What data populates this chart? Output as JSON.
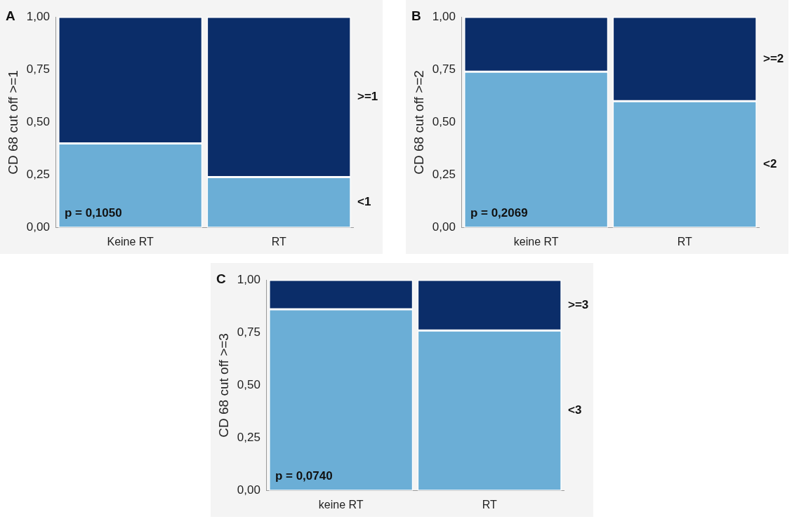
{
  "chart_data": [
    {
      "type": "bar",
      "title": "A",
      "ylabel": "CD 68 cut off >=1",
      "categories": [
        "Keine RT",
        "RT"
      ],
      "stacked": true,
      "legend": false,
      "grid": false,
      "series": [
        {
          "name": "<1",
          "color": "#6baed6",
          "values": [
            0.4,
            0.24
          ]
        },
        {
          "name": ">=1",
          "color": "#0b2d69",
          "values": [
            0.6,
            0.76
          ]
        }
      ],
      "ylim": [
        0,
        1
      ],
      "yticks": [
        {
          "value": 0,
          "label": "0,00"
        },
        {
          "value": 0.25,
          "label": "0,25"
        },
        {
          "value": 0.5,
          "label": "0,50"
        },
        {
          "value": 0.75,
          "label": "0,75"
        },
        {
          "value": 1,
          "label": "1,00"
        }
      ],
      "annotations": [
        "p = 0,1050"
      ]
    },
    {
      "type": "bar",
      "title": "B",
      "ylabel": "CD 68 cut off >=2",
      "categories": [
        "keine RT",
        "RT"
      ],
      "stacked": true,
      "legend": false,
      "grid": false,
      "series": [
        {
          "name": "<2",
          "color": "#6baed6",
          "values": [
            0.74,
            0.6
          ]
        },
        {
          "name": ">=2",
          "color": "#0b2d69",
          "values": [
            0.26,
            0.4
          ]
        }
      ],
      "ylim": [
        0,
        1
      ],
      "yticks": [
        {
          "value": 0,
          "label": "0,00"
        },
        {
          "value": 0.25,
          "label": "0,25"
        },
        {
          "value": 0.5,
          "label": "0,50"
        },
        {
          "value": 0.75,
          "label": "0,75"
        },
        {
          "value": 1,
          "label": "1,00"
        }
      ],
      "annotations": [
        "p = 0,2069"
      ]
    },
    {
      "type": "bar",
      "title": "C",
      "ylabel": "CD 68 cut off >=3",
      "categories": [
        "keine RT",
        "RT"
      ],
      "stacked": true,
      "legend": false,
      "grid": false,
      "series": [
        {
          "name": "<3",
          "color": "#6baed6",
          "values": [
            0.86,
            0.76
          ]
        },
        {
          "name": ">=3",
          "color": "#0b2d69",
          "values": [
            0.14,
            0.24
          ]
        }
      ],
      "ylim": [
        0,
        1
      ],
      "yticks": [
        {
          "value": 0,
          "label": "0,00"
        },
        {
          "value": 0.25,
          "label": "0,25"
        },
        {
          "value": 0.5,
          "label": "0,50"
        },
        {
          "value": 0.75,
          "label": "0,75"
        },
        {
          "value": 1,
          "label": "1,00"
        }
      ],
      "annotations": [
        "p = 0,0740"
      ]
    }
  ]
}
